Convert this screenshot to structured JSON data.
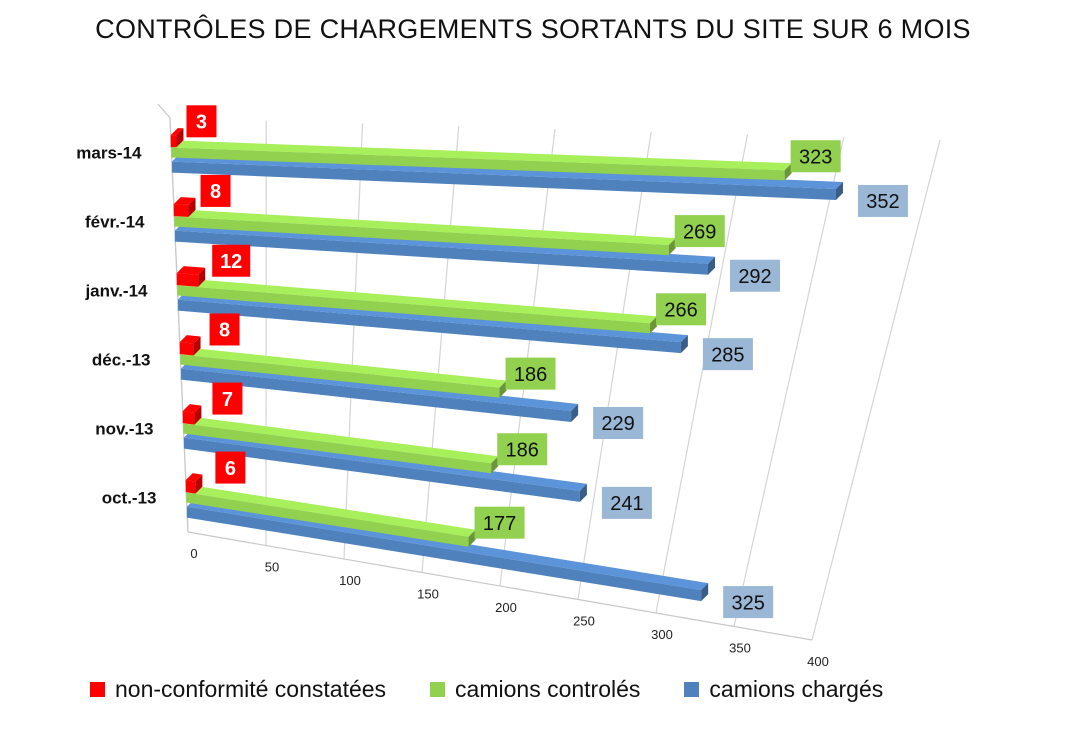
{
  "chart_data": {
    "type": "bar",
    "orientation": "horizontal",
    "style": "3d",
    "title": "CONTRÔLES DE CHARGEMENTS SORTANTS DU SITE SUR 6 MOIS",
    "categories": [
      "mars-14",
      "févr.-14",
      "janv.-14",
      "déc.-13",
      "nov.-13",
      "oct.-13"
    ],
    "series": [
      {
        "name": "non-conformité constatées",
        "color": "#ff0000",
        "values": [
          3,
          8,
          12,
          8,
          7,
          6
        ]
      },
      {
        "name": "camions controlés",
        "color": "#92d050",
        "values": [
          323,
          269,
          266,
          186,
          186,
          177
        ]
      },
      {
        "name": "camions chargés",
        "color": "#4f81bd",
        "values": [
          352,
          292,
          285,
          229,
          241,
          325
        ]
      }
    ],
    "x_ticks": [
      "0",
      "50",
      "100",
      "150",
      "200",
      "250",
      "300",
      "350",
      "400"
    ],
    "xlim": [
      0,
      400
    ],
    "grid": true,
    "legend_position": "bottom"
  }
}
